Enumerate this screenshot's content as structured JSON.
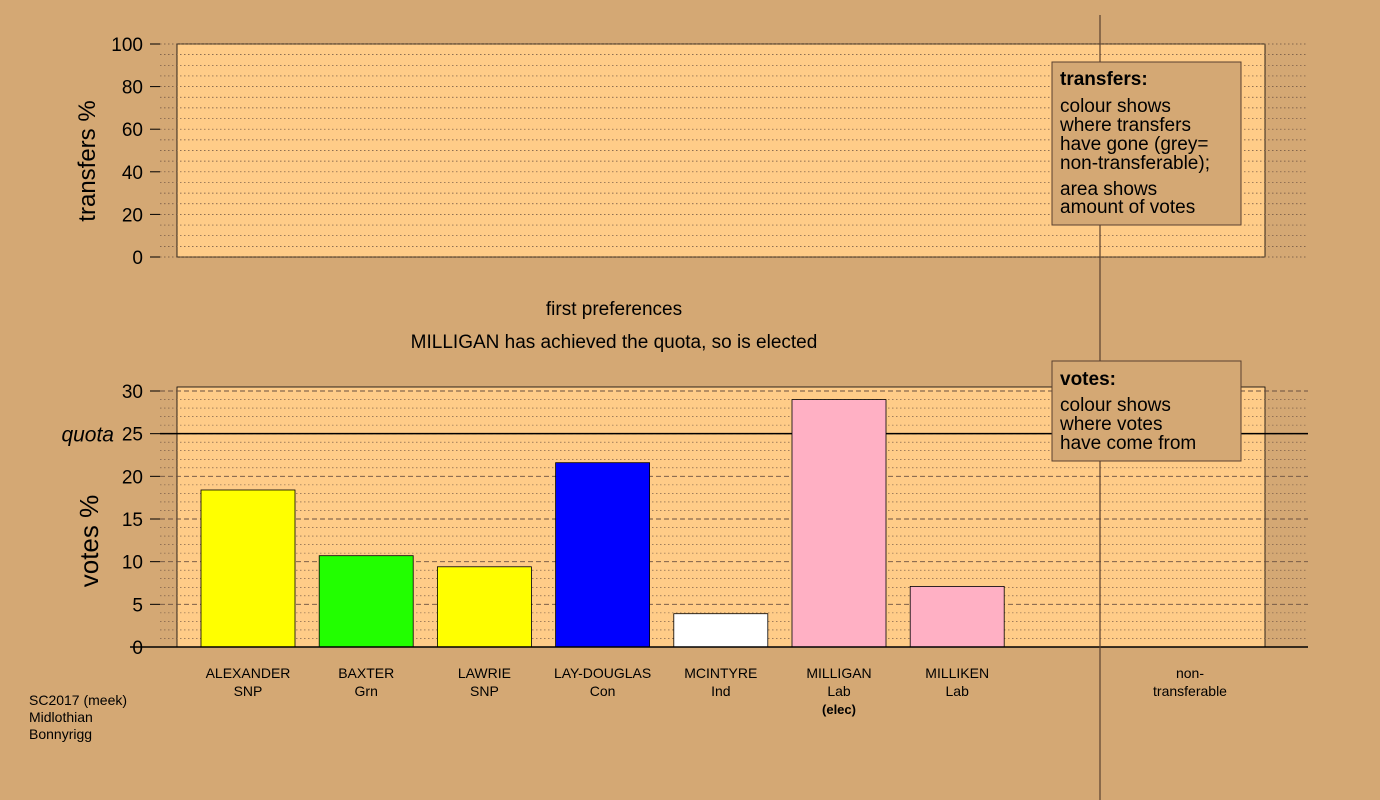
{
  "chart_data": [
    {
      "type": "bar",
      "panel": "transfers",
      "ylabel": "transfers %",
      "ylim": [
        0,
        100
      ],
      "yticks": [
        0,
        20,
        40,
        60,
        80,
        100
      ],
      "categories": [],
      "values": [],
      "legend": {
        "title": "transfers:",
        "lines_1": [
          "colour shows",
          "where transfers",
          "have gone (grey=",
          "non-transferable);"
        ],
        "lines_2": [
          "area shows",
          "amount of votes"
        ]
      }
    },
    {
      "type": "bar",
      "panel": "votes",
      "title": "first preferences",
      "subtitle": "MILLIGAN has achieved the quota, so is elected",
      "ylabel": "votes %",
      "ylim": [
        0,
        30
      ],
      "yticks": [
        0,
        5,
        10,
        15,
        20,
        25,
        30
      ],
      "quota": 25,
      "quota_label": "quota",
      "categories": [
        {
          "name": "ALEXANDER",
          "party": "SNP",
          "value": 18.4,
          "color": "#ffff00",
          "note": ""
        },
        {
          "name": "BAXTER",
          "party": "Grn",
          "value": 10.7,
          "color": "#22ff00",
          "note": ""
        },
        {
          "name": "LAWRIE",
          "party": "SNP",
          "value": 9.4,
          "color": "#ffff00",
          "note": ""
        },
        {
          "name": "LAY-DOUGLAS",
          "party": "Con",
          "value": 21.6,
          "color": "#0000ff",
          "note": ""
        },
        {
          "name": "MCINTYRE",
          "party": "Ind",
          "value": 3.9,
          "color": "#ffffff",
          "note": ""
        },
        {
          "name": "MILLIGAN",
          "party": "Lab",
          "value": 29.0,
          "color": "#ffb0c4",
          "note": "(elec)"
        },
        {
          "name": "MILLIKEN",
          "party": "Lab",
          "value": 7.1,
          "color": "#ffb0c4",
          "note": ""
        }
      ],
      "nontransferable_label_1": "non-",
      "nontransferable_label_2": "transferable",
      "legend": {
        "title": "votes:",
        "lines": [
          "colour shows",
          "where votes",
          "have come from"
        ]
      }
    }
  ],
  "footer": {
    "line1": "SC2017 (meek)",
    "line2": "Midlothian",
    "line3": "Bonnyrigg"
  },
  "colors": {
    "background": "#d4a874",
    "panel": "#ffcc88"
  }
}
